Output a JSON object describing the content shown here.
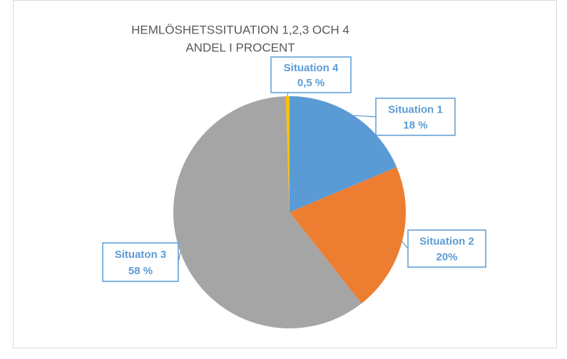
{
  "chart_data": {
    "type": "pie",
    "title": [
      "HEMLÖSHETSSITUATION 1,2,3 OCH 4",
      "ANDEL I PROCENT"
    ],
    "categories": [
      "Situation 1",
      "Situation 2",
      "Situaton 3",
      "Situation 4"
    ],
    "values": [
      18,
      20,
      58,
      0.5
    ],
    "value_labels": [
      "18 %",
      "20%",
      "58 %",
      "0,5 %"
    ],
    "colors": [
      "#5b9bd5",
      "#ed7d31",
      "#a5a5a5",
      "#ffc000"
    ]
  }
}
